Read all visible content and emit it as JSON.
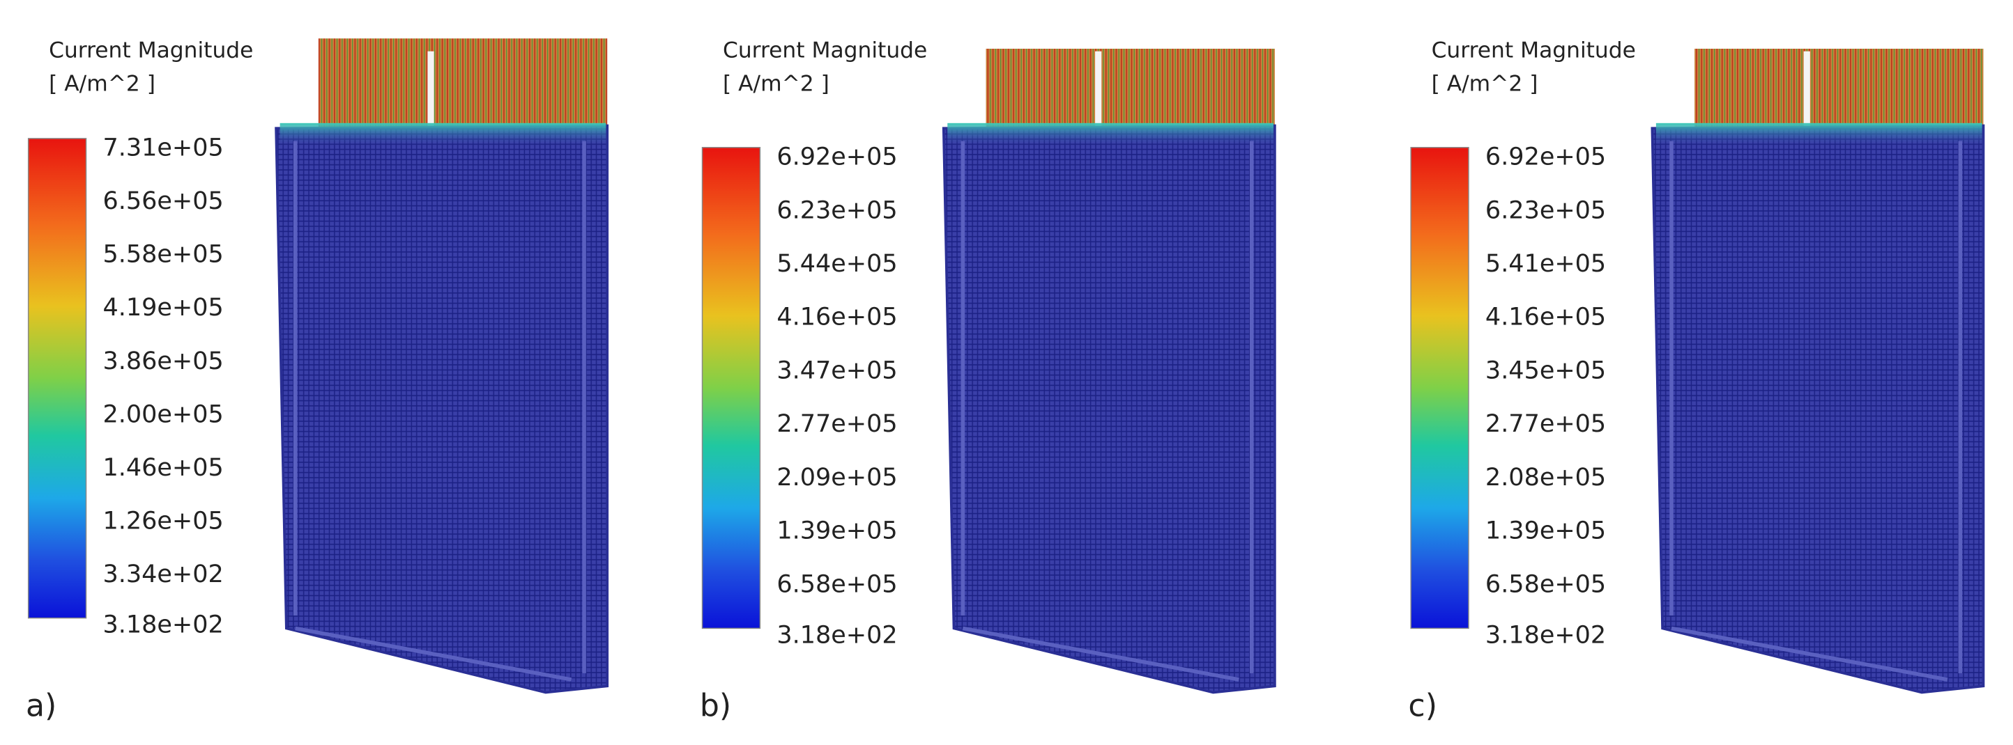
{
  "panels": [
    {
      "label": "a)",
      "title": "Current Magnitude",
      "unit": "[ A/m^2 ]",
      "legend": [
        "7.31e+05",
        "6.56e+05",
        "5.58e+05",
        "4.19e+05",
        "3.86e+05",
        "2.00e+05",
        "1.46e+05",
        "1.26e+05",
        "3.34e+02",
        "3.18e+02"
      ]
    },
    {
      "label": "b)",
      "title": "Current Magnitude",
      "unit": "[ A/m^2 ]",
      "legend": [
        "6.92e+05",
        "6.23e+05",
        "5.44e+05",
        "4.16e+05",
        "3.47e+05",
        "2.77e+05",
        "2.09e+05",
        "1.39e+05",
        "6.58e+05",
        "3.18e+02"
      ]
    },
    {
      "label": "c)",
      "title": "Current Magnitude",
      "unit": "[ A/m^2 ]",
      "legend": [
        "6.92e+05",
        "6.23e+05",
        "5.41e+05",
        "4.16e+05",
        "3.45e+05",
        "2.77e+05",
        "2.08e+05",
        "1.39e+05",
        "6.58e+05",
        "3.18e+02"
      ]
    }
  ]
}
